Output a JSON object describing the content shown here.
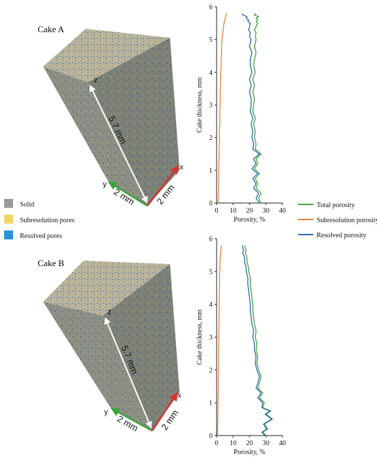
{
  "legend_materials": [
    {
      "label": "Solid",
      "color": "#9a9a9a"
    },
    {
      "label": "Subresolution pores",
      "color": "#f1d36a"
    },
    {
      "label": "Resolved pores",
      "color": "#2a8fd6"
    }
  ],
  "legend_porosity": [
    {
      "label": "Total porosity",
      "color": "#3aa33a"
    },
    {
      "label": "Subresolution porosity",
      "color": "#ee7d35"
    },
    {
      "label": "Resolved porosity",
      "color": "#2c64ad"
    }
  ],
  "colors": {
    "solid": "#8c8c86",
    "top_face": "#b8b39a",
    "pore_blue": "#2f6fc0",
    "x_axis": "#d93030",
    "y_axis": "#3aa33a",
    "z_axis": "#ffffff"
  },
  "cakes": [
    {
      "title": "Cake A",
      "height_label": "5.7 mm",
      "width_label_1": "2 mm",
      "width_label_2": "2 mm",
      "axis_x": "x",
      "axis_y": "y",
      "axis_z": "z"
    },
    {
      "title": "Cake B",
      "height_label": "5.7 mm",
      "width_label_1": "2 mm",
      "width_label_2": "2 mm",
      "axis_x": "x",
      "axis_y": "y",
      "axis_z": "z"
    }
  ],
  "chart_data": [
    {
      "type": "line",
      "xlabel": "Porosity, %",
      "ylabel": "Cake thickness, mm",
      "xlim": [
        0,
        40
      ],
      "ylim": [
        0,
        6
      ],
      "xticks": [
        0,
        10,
        20,
        30,
        40
      ],
      "yticks": [
        0,
        1,
        2,
        3,
        4,
        5,
        6
      ],
      "series": [
        {
          "name": "Total porosity",
          "color": "#3aa33a",
          "x": [
            27,
            25.5,
            27,
            24,
            25,
            23.5,
            26,
            23,
            25,
            24,
            27,
            23.5,
            24,
            23,
            23.5,
            22.5,
            23.5,
            22,
            22.5,
            23,
            22,
            23,
            22,
            23.5,
            22.5,
            23,
            24,
            23,
            24,
            23.5,
            24,
            23,
            24,
            25,
            24,
            25,
            24,
            25.5,
            23,
            24
          ],
          "y": [
            0,
            0.15,
            0.3,
            0.45,
            0.6,
            0.75,
            0.9,
            1.05,
            1.2,
            1.35,
            1.5,
            1.65,
            1.8,
            2.0,
            2.2,
            2.4,
            2.6,
            2.8,
            3.0,
            3.2,
            3.4,
            3.6,
            3.8,
            4.0,
            4.2,
            4.4,
            4.6,
            4.8,
            5.0,
            5.1,
            5.2,
            5.3,
            5.4,
            5.5,
            5.55,
            5.6,
            5.65,
            5.7,
            5.75,
            5.8
          ]
        },
        {
          "name": "Subresolution porosity",
          "color": "#ee7d35",
          "x": [
            0.8,
            1.0,
            1.1,
            1.2,
            1.1,
            1.3,
            1.2,
            1.3,
            1.4,
            1.5,
            1.6,
            1.5,
            1.7,
            1.8,
            1.7,
            1.9,
            2.0,
            1.9,
            2.1,
            2.2,
            2.2,
            2.3,
            2.4,
            2.5,
            2.7,
            2.8,
            3.0,
            3.1,
            3.3,
            3.5,
            3.8,
            4.0,
            4.2,
            4.5,
            4.8,
            5.0,
            5.3,
            5.5,
            5.8,
            6.0
          ],
          "y": [
            0,
            0.15,
            0.3,
            0.45,
            0.6,
            0.75,
            0.9,
            1.05,
            1.2,
            1.35,
            1.5,
            1.65,
            1.8,
            2.0,
            2.2,
            2.4,
            2.6,
            2.8,
            3.0,
            3.2,
            3.4,
            3.6,
            3.8,
            4.0,
            4.2,
            4.4,
            4.6,
            4.8,
            5.0,
            5.1,
            5.2,
            5.3,
            5.4,
            5.5,
            5.55,
            5.6,
            5.65,
            5.7,
            5.75,
            5.8
          ]
        },
        {
          "name": "Resolved porosity",
          "color": "#2c64ad",
          "x": [
            26,
            24,
            25.5,
            22.5,
            24,
            22,
            25,
            21.5,
            24,
            22.5,
            26,
            22,
            22.5,
            21.5,
            22,
            21,
            22,
            20.5,
            21,
            21,
            20,
            21,
            20,
            21.5,
            20.5,
            20.5,
            21.5,
            20,
            21,
            20,
            20.5,
            19.5,
            20,
            20.5,
            19,
            19.5,
            18,
            18.5,
            16,
            15.5
          ],
          "y": [
            0,
            0.15,
            0.3,
            0.45,
            0.6,
            0.75,
            0.9,
            1.05,
            1.2,
            1.35,
            1.5,
            1.65,
            1.8,
            2.0,
            2.2,
            2.4,
            2.6,
            2.8,
            3.0,
            3.2,
            3.4,
            3.6,
            3.8,
            4.0,
            4.2,
            4.4,
            4.6,
            4.8,
            5.0,
            5.1,
            5.2,
            5.3,
            5.4,
            5.5,
            5.55,
            5.6,
            5.65,
            5.7,
            5.75,
            5.8
          ]
        }
      ]
    },
    {
      "type": "line",
      "xlabel": "Porosity, %",
      "ylabel": "Cake thickness, mm",
      "xlim": [
        0,
        40
      ],
      "ylim": [
        0,
        6
      ],
      "xticks": [
        0,
        10,
        20,
        30,
        40
      ],
      "yticks": [
        0,
        1,
        2,
        3,
        4,
        5,
        6
      ],
      "series": [
        {
          "name": "Total porosity",
          "color": "#3aa33a",
          "x": [
            30,
            28,
            31,
            29,
            34,
            30,
            33,
            28,
            29,
            26,
            28,
            25,
            26,
            27,
            25.5,
            24.5,
            25,
            24,
            24.5,
            23.5,
            24,
            23,
            22.5,
            22,
            22,
            21.5,
            21,
            20.5,
            20.5,
            19.5,
            19.5,
            19,
            18.5,
            18.5,
            18,
            17.5,
            17.5,
            18,
            17.5,
            17
          ],
          "y": [
            0,
            0.1,
            0.2,
            0.35,
            0.5,
            0.65,
            0.75,
            0.85,
            1.0,
            1.15,
            1.3,
            1.45,
            1.6,
            1.8,
            2.0,
            2.2,
            2.4,
            2.6,
            2.8,
            3.0,
            3.2,
            3.4,
            3.6,
            3.8,
            4.0,
            4.2,
            4.4,
            4.6,
            4.8,
            5.0,
            5.1,
            5.2,
            5.3,
            5.4,
            5.5,
            5.55,
            5.6,
            5.65,
            5.7,
            5.8
          ]
        },
        {
          "name": "Subresolution porosity",
          "color": "#ee7d35",
          "x": [
            0.5,
            0.6,
            0.6,
            0.7,
            0.7,
            0.8,
            0.8,
            0.8,
            0.9,
            0.9,
            1.0,
            1.0,
            1.0,
            1.1,
            1.1,
            1.2,
            1.2,
            1.2,
            1.3,
            1.3,
            1.4,
            1.4,
            1.5,
            1.5,
            1.6,
            1.6,
            1.7,
            1.8,
            1.8,
            1.9,
            2.0,
            2.0,
            2.1,
            2.2,
            2.3,
            2.4,
            2.5,
            2.6,
            2.7,
            2.8
          ],
          "y": [
            0,
            0.1,
            0.2,
            0.35,
            0.5,
            0.65,
            0.75,
            0.85,
            1.0,
            1.15,
            1.3,
            1.45,
            1.6,
            1.8,
            2.0,
            2.2,
            2.4,
            2.6,
            2.8,
            3.0,
            3.2,
            3.4,
            3.6,
            3.8,
            4.0,
            4.2,
            4.4,
            4.6,
            4.8,
            5.0,
            5.1,
            5.2,
            5.3,
            5.4,
            5.5,
            5.55,
            5.6,
            5.65,
            5.7,
            5.8
          ]
        },
        {
          "name": "Resolved porosity",
          "color": "#2c64ad",
          "x": [
            29.5,
            27.5,
            30.5,
            28.5,
            33.5,
            29.5,
            32.5,
            27.5,
            28,
            25,
            27,
            24,
            25,
            26,
            24.5,
            23.5,
            24,
            23,
            23,
            22,
            22.5,
            21.5,
            21,
            20.5,
            20.5,
            20,
            19.5,
            19,
            19,
            18,
            18,
            17.5,
            17,
            17,
            16.5,
            16,
            16,
            16.5,
            16,
            15.5
          ],
          "y": [
            0,
            0.1,
            0.2,
            0.35,
            0.5,
            0.65,
            0.75,
            0.85,
            1.0,
            1.15,
            1.3,
            1.45,
            1.6,
            1.8,
            2.0,
            2.2,
            2.4,
            2.6,
            2.8,
            3.0,
            3.2,
            3.4,
            3.6,
            3.8,
            4.0,
            4.2,
            4.4,
            4.6,
            4.8,
            5.0,
            5.1,
            5.2,
            5.3,
            5.4,
            5.5,
            5.55,
            5.6,
            5.65,
            5.7,
            5.8
          ]
        }
      ]
    }
  ]
}
